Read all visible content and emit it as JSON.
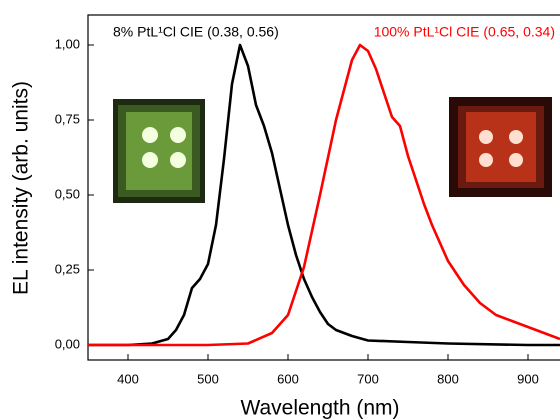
{
  "chart_data": {
    "type": "line",
    "x_label": "Wavelength (nm)",
    "y_label": "EL intensity (arb. units)",
    "annotations": [
      "8% PtL¹Cl CIE (0.38, 0.56)",
      "100% PtL¹Cl CIE (0.65, 0.34)"
    ],
    "annotation_colors": [
      "#000000",
      "#ff0000"
    ],
    "xlim": [
      350,
      940
    ],
    "ylim": [
      -0.05,
      1.1
    ],
    "xticks": [
      400,
      500,
      600,
      700,
      800,
      900
    ],
    "yticks": [
      {
        "value": 0,
        "label": "0,00"
      },
      {
        "value": 0.25,
        "label": "0,25"
      },
      {
        "value": 0.5,
        "label": "0,50"
      },
      {
        "value": 0.75,
        "label": "0,75"
      },
      {
        "value": 1,
        "label": "1,00"
      }
    ],
    "series": [
      {
        "color": "#000000",
        "x": [
          350,
          400,
          430,
          450,
          460,
          470,
          480,
          490,
          500,
          510,
          520,
          530,
          540,
          550,
          560,
          570,
          580,
          590,
          600,
          610,
          620,
          630,
          640,
          650,
          660,
          680,
          700,
          750,
          800,
          900,
          940
        ],
        "values": [
          0,
          0,
          0.005,
          0.02,
          0.05,
          0.1,
          0.19,
          0.22,
          0.27,
          0.4,
          0.62,
          0.87,
          1.0,
          0.93,
          0.8,
          0.73,
          0.64,
          0.52,
          0.4,
          0.3,
          0.22,
          0.16,
          0.11,
          0.07,
          0.05,
          0.03,
          0.015,
          0.01,
          0.005,
          0,
          0
        ]
      },
      {
        "color": "#ff0000",
        "x": [
          350,
          500,
          550,
          580,
          600,
          620,
          640,
          660,
          680,
          690,
          700,
          710,
          720,
          730,
          740,
          750,
          760,
          770,
          780,
          790,
          800,
          820,
          840,
          860,
          880,
          900,
          920,
          940
        ],
        "values": [
          0,
          0,
          0.005,
          0.04,
          0.1,
          0.26,
          0.5,
          0.75,
          0.95,
          1.0,
          0.98,
          0.92,
          0.84,
          0.76,
          0.73,
          0.63,
          0.55,
          0.47,
          0.4,
          0.34,
          0.28,
          0.2,
          0.14,
          0.1,
          0.08,
          0.06,
          0.04,
          0.02
        ]
      }
    ]
  }
}
